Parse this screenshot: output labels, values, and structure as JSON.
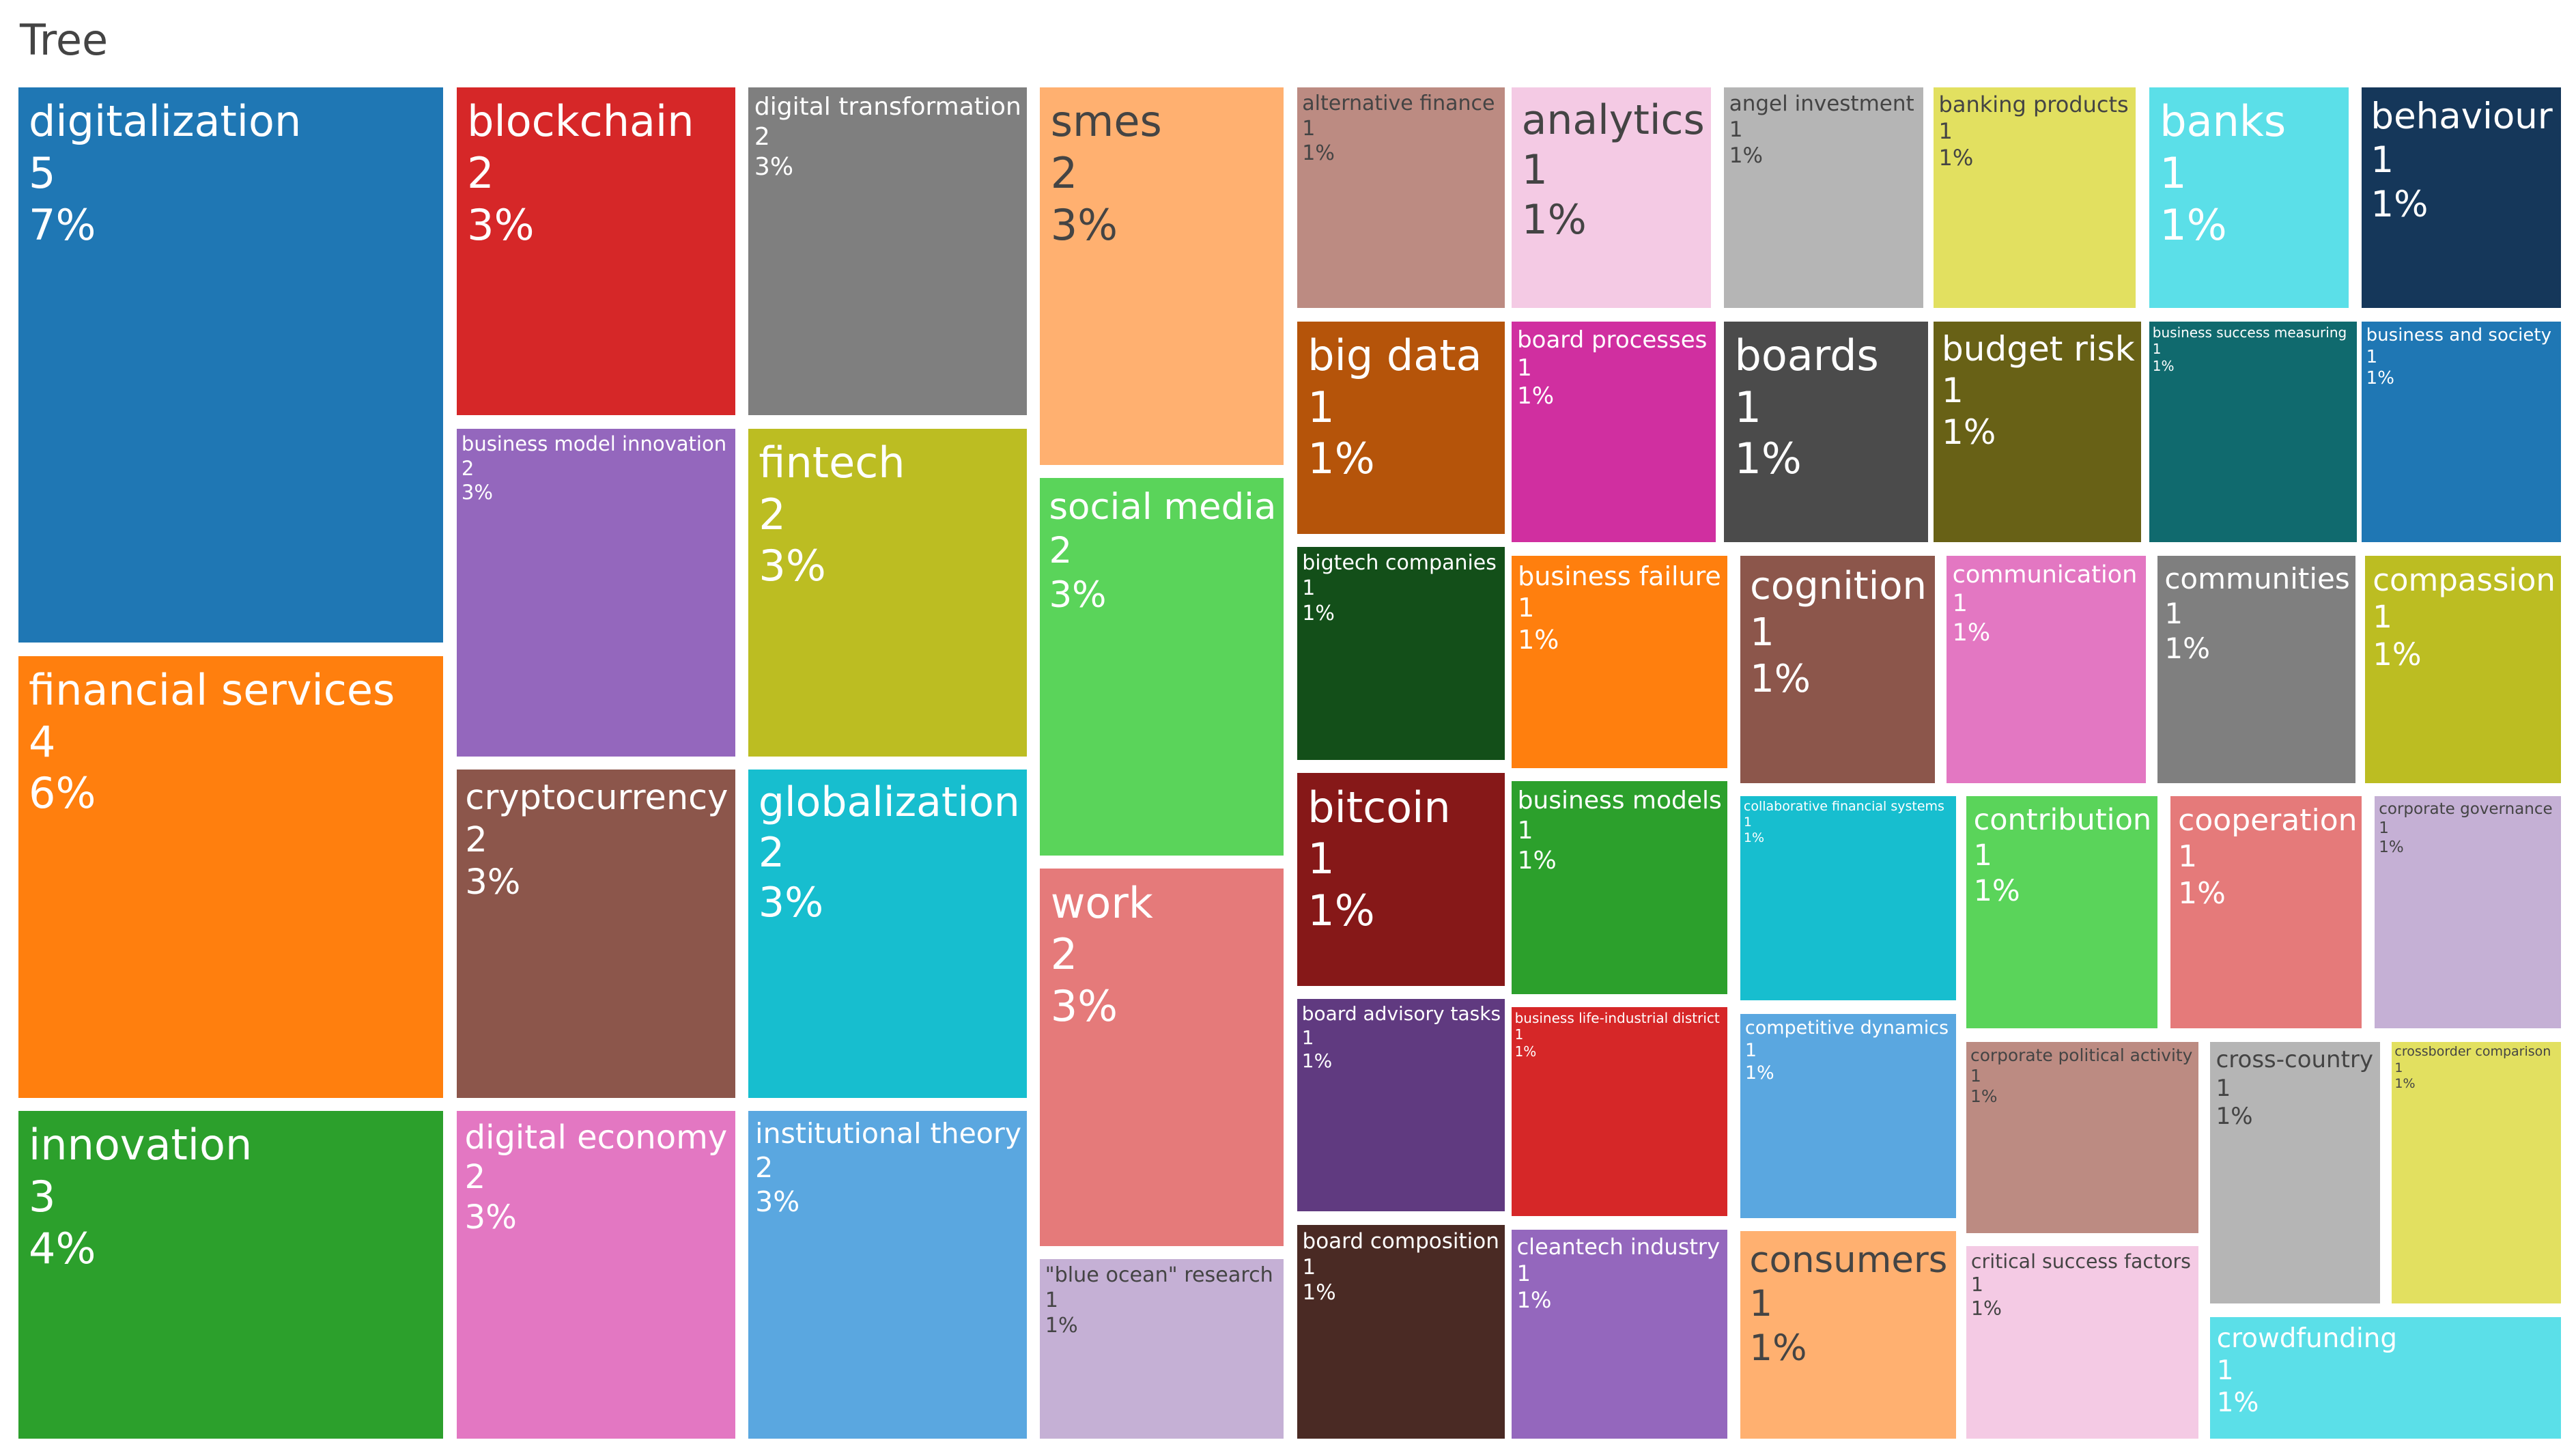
{
  "page": {
    "title": "Tree"
  },
  "chart_data": {
    "type": "treemap",
    "title": "Tree",
    "items": [
      {
        "name": "digitalization",
        "value": 5,
        "percent": "7%",
        "color": "#1f77b4"
      },
      {
        "name": "financial services",
        "value": 4,
        "percent": "6%",
        "color": "#ff7f0e"
      },
      {
        "name": "innovation",
        "value": 3,
        "percent": "4%",
        "color": "#2ca02c"
      },
      {
        "name": "blockchain",
        "value": 2,
        "percent": "3%",
        "color": "#d62728"
      },
      {
        "name": "business model innovation",
        "value": 2,
        "percent": "3%",
        "color": "#9467bd"
      },
      {
        "name": "cryptocurrency",
        "value": 2,
        "percent": "3%",
        "color": "#8c564b"
      },
      {
        "name": "digital economy",
        "value": 2,
        "percent": "3%",
        "color": "#e377c2"
      },
      {
        "name": "digital transformation",
        "value": 2,
        "percent": "3%",
        "color": "#7f7f7f"
      },
      {
        "name": "fintech",
        "value": 2,
        "percent": "3%",
        "color": "#bcbd22"
      },
      {
        "name": "globalization",
        "value": 2,
        "percent": "3%",
        "color": "#17becf"
      },
      {
        "name": "institutional theory",
        "value": 2,
        "percent": "3%",
        "color": "#5aa7e0"
      },
      {
        "name": "smes",
        "value": 2,
        "percent": "3%",
        "color": "#ffb070"
      },
      {
        "name": "social media",
        "value": 2,
        "percent": "3%",
        "color": "#5ad45a"
      },
      {
        "name": "work",
        "value": 2,
        "percent": "3%",
        "color": "#e57a7a"
      },
      {
        "name": "\"blue ocean\" research",
        "value": 1,
        "percent": "1%",
        "color": "#c5b0d5"
      },
      {
        "name": "alternative finance",
        "value": 1,
        "percent": "1%",
        "color": "#bc8b82"
      },
      {
        "name": "big data",
        "value": 1,
        "percent": "1%",
        "color": "#b5540a"
      },
      {
        "name": "bigtech companies",
        "value": 1,
        "percent": "1%",
        "color": "#134f19"
      },
      {
        "name": "bitcoin",
        "value": 1,
        "percent": "1%",
        "color": "#861818"
      },
      {
        "name": "board advisory tasks",
        "value": 1,
        "percent": "1%",
        "color": "#603a80"
      },
      {
        "name": "board composition",
        "value": 1,
        "percent": "1%",
        "color": "#4a2a24"
      },
      {
        "name": "analytics",
        "value": 1,
        "percent": "1%",
        "color": "#f4cae4"
      },
      {
        "name": "board processes",
        "value": 1,
        "percent": "1%",
        "color": "#d02fa0"
      },
      {
        "name": "business failure",
        "value": 1,
        "percent": "1%",
        "color": "#ff7f0e"
      },
      {
        "name": "business models",
        "value": 1,
        "percent": "1%",
        "color": "#2ca02c"
      },
      {
        "name": "business life-industrial district",
        "value": 1,
        "percent": "1%",
        "color": "#d62728"
      },
      {
        "name": "cleantech industry",
        "value": 1,
        "percent": "1%",
        "color": "#9467bd"
      },
      {
        "name": "angel investment",
        "value": 1,
        "percent": "1%",
        "color": "#b5b5b5"
      },
      {
        "name": "boards",
        "value": 1,
        "percent": "1%",
        "color": "#4b4b4b"
      },
      {
        "name": "cognition",
        "value": 1,
        "percent": "1%",
        "color": "#8c564b"
      },
      {
        "name": "collaborative financial systems",
        "value": 1,
        "percent": "1%",
        "color": "#17becf"
      },
      {
        "name": "competitive dynamics",
        "value": 1,
        "percent": "1%",
        "color": "#5aa7e0"
      },
      {
        "name": "consumers",
        "value": 1,
        "percent": "1%",
        "color": "#ffb070"
      },
      {
        "name": "banking products",
        "value": 1,
        "percent": "1%",
        "color": "#e2e060"
      },
      {
        "name": "budget risk",
        "value": 1,
        "percent": "1%",
        "color": "#686116"
      },
      {
        "name": "communication",
        "value": 1,
        "percent": "1%",
        "color": "#e377c2"
      },
      {
        "name": "contribution",
        "value": 1,
        "percent": "1%",
        "color": "#5ad45a"
      },
      {
        "name": "corporate political activity",
        "value": 1,
        "percent": "1%",
        "color": "#bc8b82"
      },
      {
        "name": "critical success factors",
        "value": 1,
        "percent": "1%",
        "color": "#f4cae4"
      },
      {
        "name": "banks",
        "value": 1,
        "percent": "1%",
        "color": "#5bdfe8"
      },
      {
        "name": "business success measuring",
        "value": 1,
        "percent": "1%",
        "color": "#106a6e"
      },
      {
        "name": "communities",
        "value": 1,
        "percent": "1%",
        "color": "#7f7f7f"
      },
      {
        "name": "cooperation",
        "value": 1,
        "percent": "1%",
        "color": "#e57a7a"
      },
      {
        "name": "cross-country",
        "value": 1,
        "percent": "1%",
        "color": "#b5b5b5"
      },
      {
        "name": "crowdfunding",
        "value": 1,
        "percent": "1%",
        "color": "#5bdfe8"
      },
      {
        "name": "behaviour",
        "value": 1,
        "percent": "1%",
        "color": "#15375a"
      },
      {
        "name": "business and society",
        "value": 1,
        "percent": "1%",
        "color": "#1f77b4"
      },
      {
        "name": "compassion",
        "value": 1,
        "percent": "1%",
        "color": "#bcbd22"
      },
      {
        "name": "corporate governance",
        "value": 1,
        "percent": "1%",
        "color": "#c5b0d5"
      },
      {
        "name": "crossborder comparison",
        "value": 1,
        "percent": "1%",
        "color": "#e2e060"
      }
    ]
  }
}
